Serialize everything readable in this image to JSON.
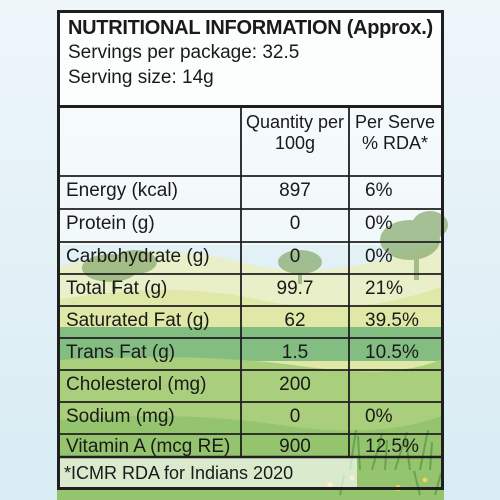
{
  "label": {
    "title": "NUTRITIONAL INFORMATION (Approx.)",
    "servings_line": "Servings per package: 32.5",
    "serving_size_line": "Serving size: 14g"
  },
  "table": {
    "columns": [
      "Quantity per 100g",
      "Per Serve % RDA*"
    ],
    "column_head_lines": [
      [
        "Quantity per",
        "100g"
      ],
      [
        "Per Serve",
        "% RDA*"
      ]
    ],
    "rows": [
      {
        "nutrient": "Energy (kcal)",
        "per100g": "897",
        "rda": "6%"
      },
      {
        "nutrient": "Protein (g)",
        "per100g": "0",
        "rda": "0%"
      },
      {
        "nutrient": "Carbohydrate (g)",
        "per100g": "0",
        "rda": "0%"
      },
      {
        "nutrient": "Total Fat (g)",
        "per100g": "99.7",
        "rda": "21%"
      },
      {
        "nutrient": "Saturated Fat (g)",
        "per100g": "62",
        "rda": "39.5%"
      },
      {
        "nutrient": "Trans Fat (g)",
        "per100g": "1.5",
        "rda": "10.5%"
      },
      {
        "nutrient": "Cholesterol (mg)",
        "per100g": "200",
        "rda": ""
      },
      {
        "nutrient": "Sodium (mg)",
        "per100g": "0",
        "rda": "0%"
      },
      {
        "nutrient": "Vitamin A (mcg RE)",
        "per100g": "900",
        "rda": "12.5%"
      }
    ]
  },
  "footnote": "*ICMR RDA for Indians 2020",
  "colors": {
    "sky_top": "#eaf4f8",
    "sky_bottom": "#d6ecf2",
    "meadow_light": "#e3e9a8",
    "meadow": "#9fcf7f",
    "meadow_dark": "#5e9a57",
    "border": "#1f1f1f"
  }
}
